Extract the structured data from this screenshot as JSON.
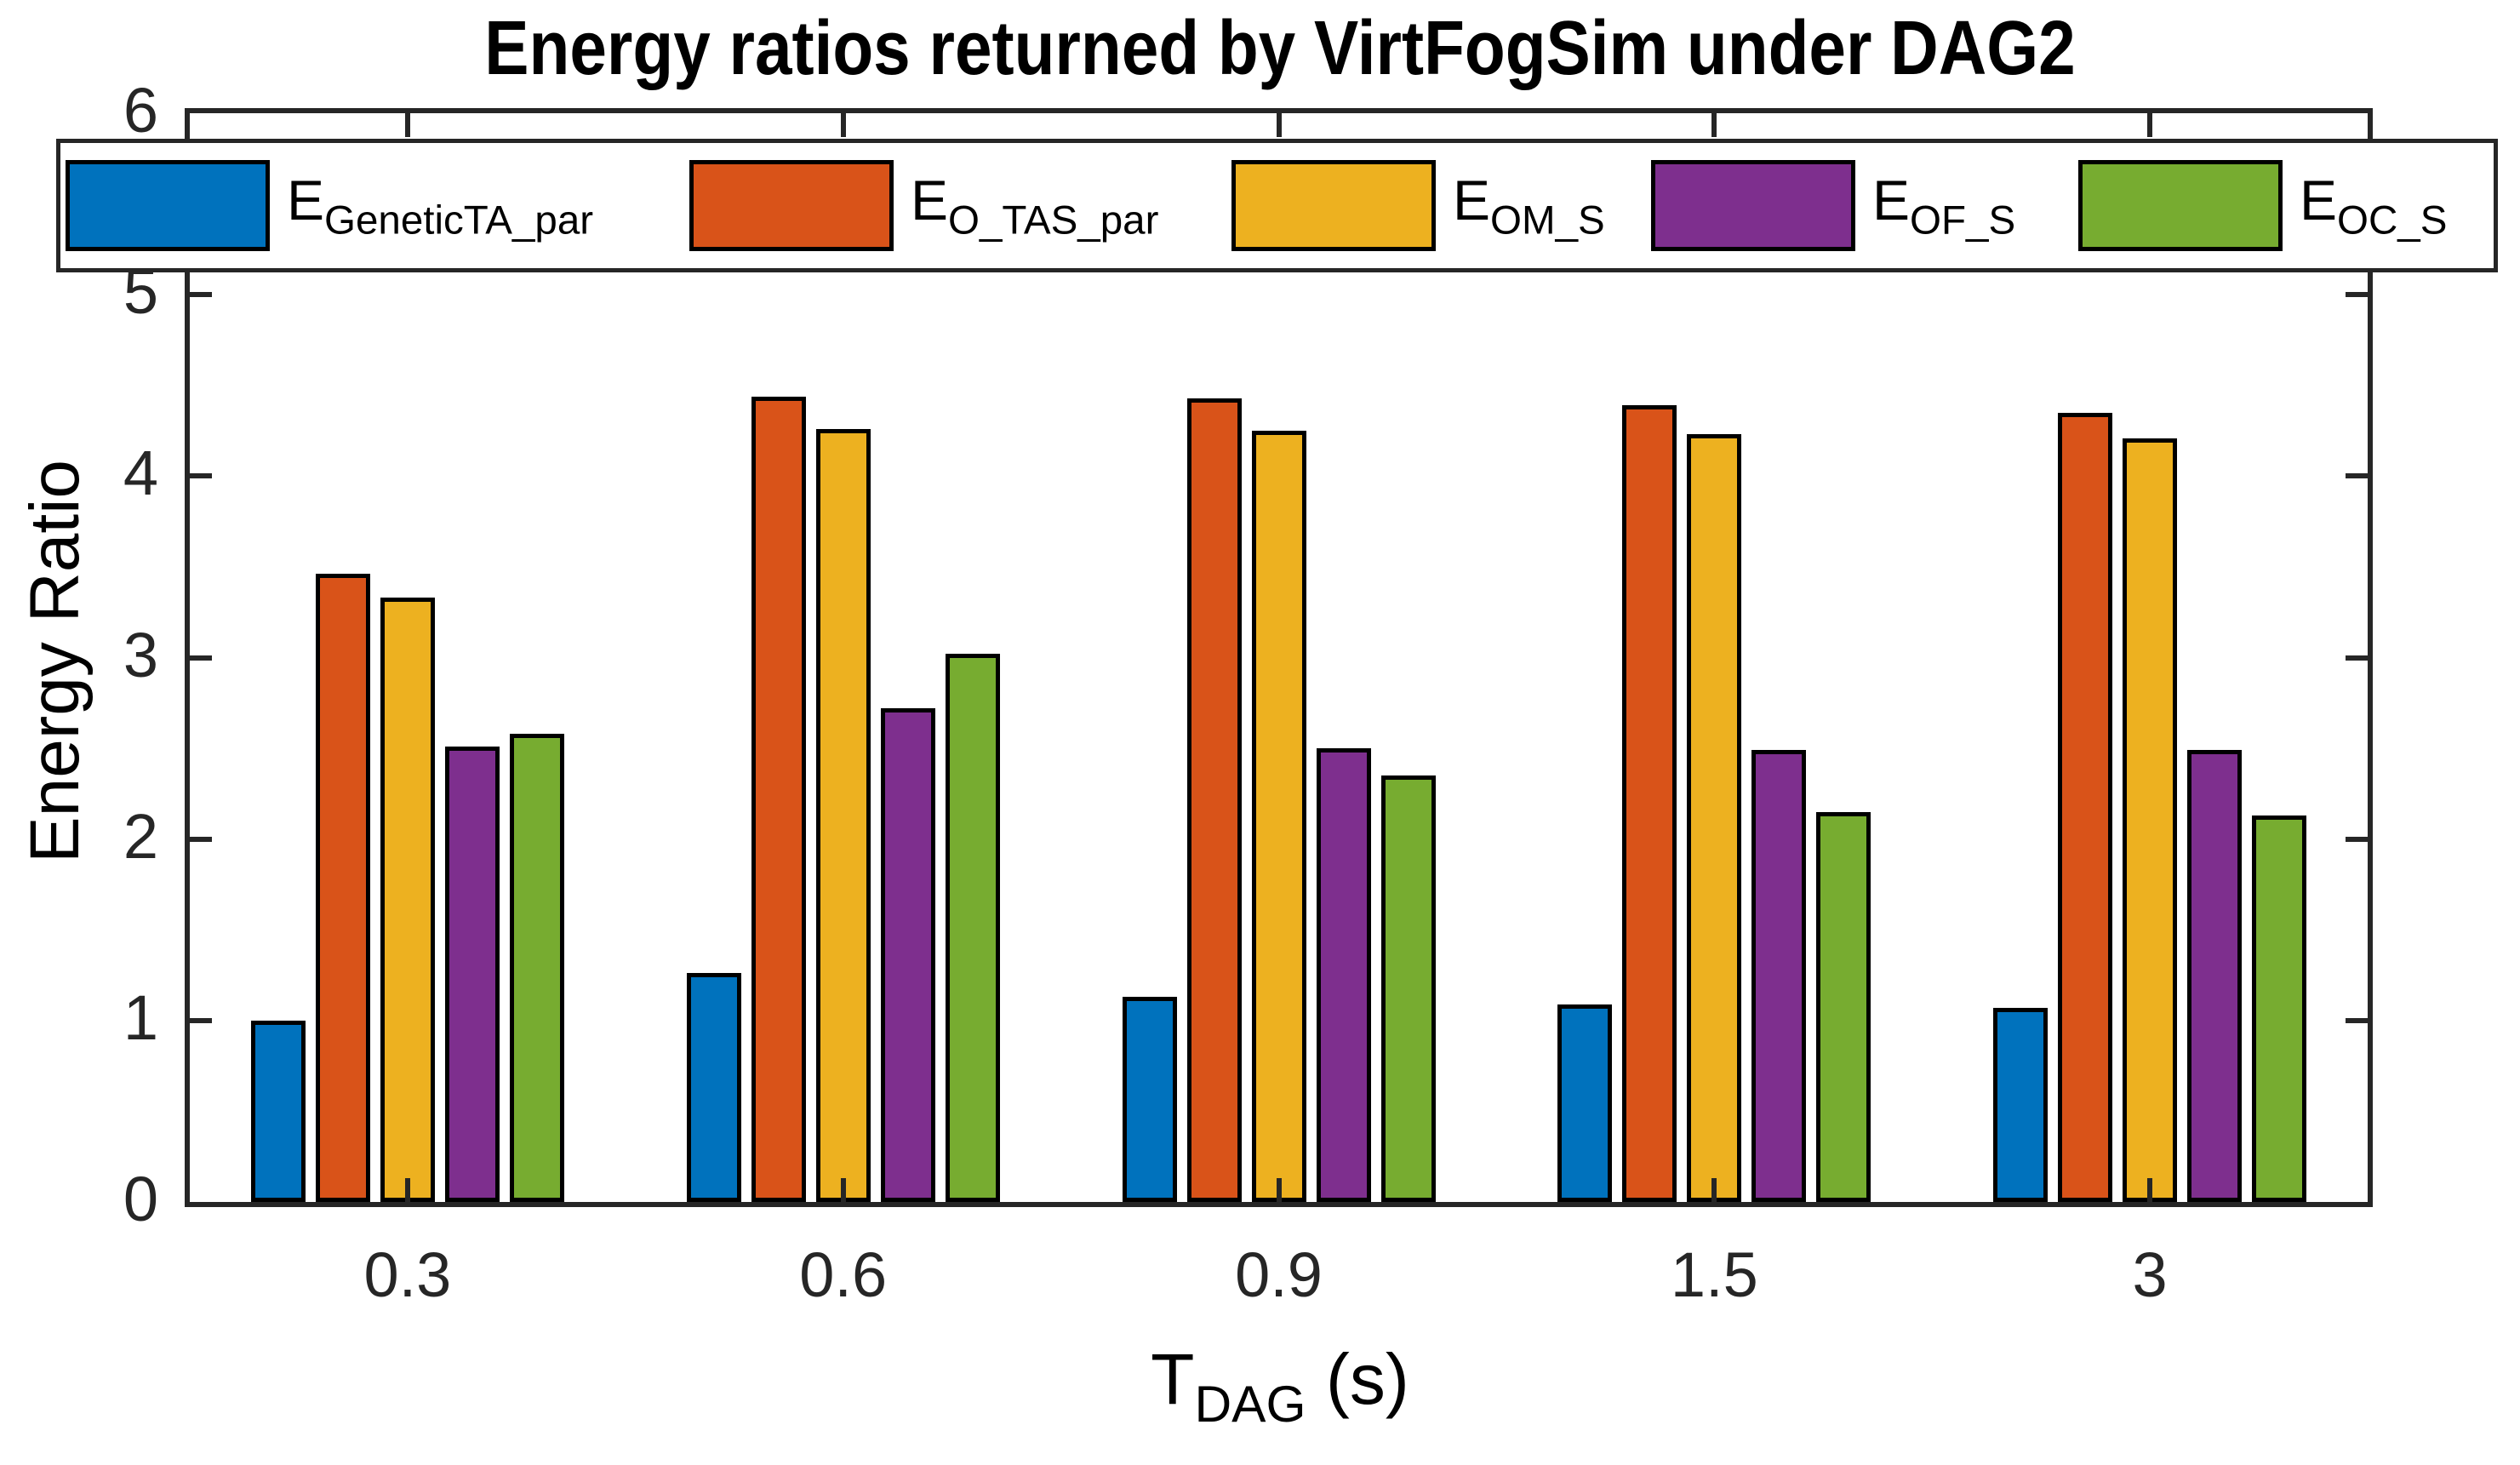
{
  "title": "Energy ratios returned by VirtFogSim under DAG2",
  "ylabel": "Energy Ratio",
  "xlabel": {
    "base": "T",
    "sub": "DAG",
    "suffix": " (s)"
  },
  "chart_data": {
    "type": "bar",
    "title": "Energy ratios returned by VirtFogSim under DAG2",
    "xlabel": "T_DAG (s)",
    "ylabel": "Energy Ratio",
    "categories": [
      "0.3",
      "0.6",
      "0.9",
      "1.5",
      "3"
    ],
    "yticks": [
      0,
      1,
      2,
      3,
      4,
      5,
      6
    ],
    "ylim": [
      0,
      6
    ],
    "grid": false,
    "legend_position": "top-horizontal",
    "series": [
      {
        "name": "E_GeneticTA_par",
        "label_base": "E",
        "label_sub": "GeneticTA_par",
        "color": "#0072BD",
        "values": [
          1.0,
          1.26,
          1.13,
          1.09,
          1.07
        ]
      },
      {
        "name": "E_O_TAS_par",
        "label_base": "E",
        "label_sub": "O_TAS_par",
        "color": "#D95319",
        "values": [
          3.46,
          4.44,
          4.43,
          4.39,
          4.35
        ]
      },
      {
        "name": "E_OM_S",
        "label_base": "E",
        "label_sub": "OM_S",
        "color": "#EDB120",
        "values": [
          3.33,
          4.26,
          4.25,
          4.23,
          4.21
        ]
      },
      {
        "name": "E_OF_S",
        "label_base": "E",
        "label_sub": "OF_S",
        "color": "#7E2F8E",
        "values": [
          2.51,
          2.72,
          2.5,
          2.49,
          2.49
        ]
      },
      {
        "name": "E_OC_S",
        "label_base": "E",
        "label_sub": "OC_S",
        "color": "#77AC30",
        "values": [
          2.58,
          3.02,
          2.35,
          2.15,
          2.13
        ]
      }
    ]
  },
  "layout_colors": {
    "axis": "#262626",
    "bar_edge": "#000000",
    "background": "#ffffff"
  }
}
